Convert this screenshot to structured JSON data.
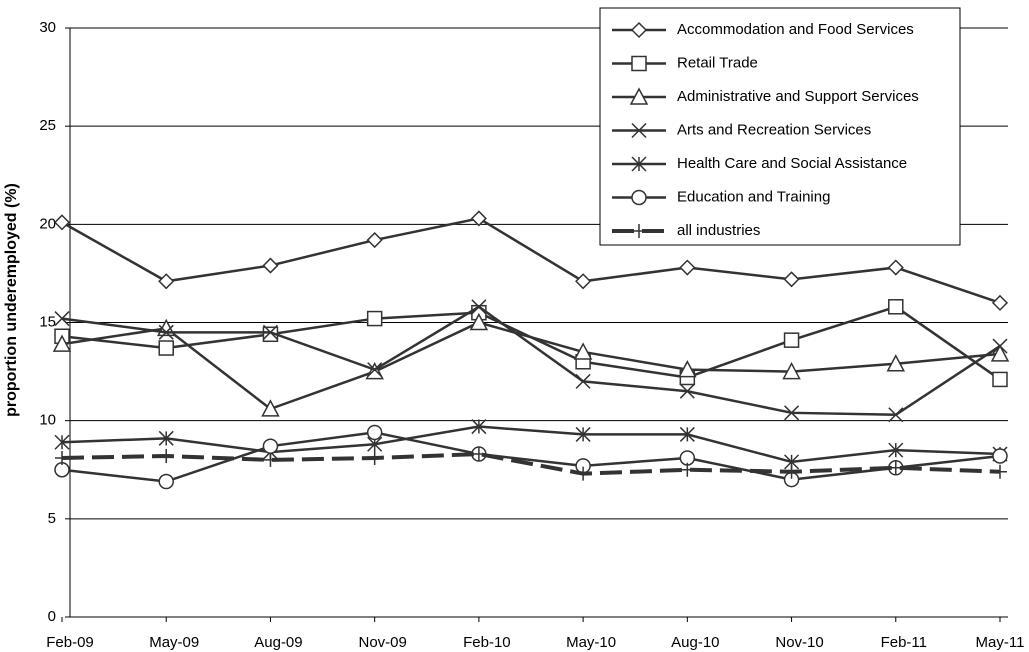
{
  "chart_data": {
    "type": "line",
    "y_label": "proportion underemployed (%)",
    "categories": [
      "Feb-09",
      "May-09",
      "Aug-09",
      "Nov-09",
      "Feb-10",
      "May-10",
      "Aug-10",
      "Nov-10",
      "Feb-11",
      "May-11"
    ],
    "ylim": [
      0,
      30
    ],
    "yticks": [
      0,
      5,
      10,
      15,
      20,
      25,
      30
    ],
    "grid": true,
    "legend": "upper right",
    "series": [
      {
        "name": "Accommodation and Food Services",
        "color": "#333333",
        "marker": "diamond",
        "values": [
          20.1,
          17.1,
          17.9,
          19.2,
          20.3,
          17.1,
          17.8,
          17.2,
          17.8,
          16.0
        ]
      },
      {
        "name": "Retail Trade",
        "color": "#333333",
        "marker": "square",
        "values": [
          14.3,
          13.7,
          14.4,
          15.2,
          15.5,
          13.0,
          12.2,
          14.1,
          15.8,
          12.1
        ]
      },
      {
        "name": "Administrative and Support Services",
        "color": "#333333",
        "marker": "triangle",
        "values": [
          13.9,
          14.7,
          10.6,
          12.5,
          15.0,
          13.5,
          12.6,
          12.5,
          12.9,
          13.4
        ]
      },
      {
        "name": "Arts and Recreation Services",
        "color": "#333333",
        "marker": "x",
        "values": [
          15.2,
          14.5,
          14.5,
          12.6,
          15.8,
          12.0,
          11.5,
          10.4,
          10.3,
          13.8
        ]
      },
      {
        "name": "Health Care and Social Assistance",
        "color": "#333333",
        "marker": "asterisk",
        "values": [
          8.9,
          9.1,
          8.4,
          8.8,
          9.7,
          9.3,
          9.3,
          7.9,
          8.5,
          8.3
        ]
      },
      {
        "name": "Education and Training",
        "color": "#333333",
        "marker": "circle",
        "values": [
          7.5,
          6.9,
          8.7,
          9.4,
          8.3,
          7.7,
          8.1,
          7.0,
          7.6,
          8.2
        ]
      },
      {
        "name": "all industries",
        "color": "#333333",
        "marker": "plus",
        "dashed": true,
        "values": [
          8.1,
          8.2,
          8.0,
          8.1,
          8.3,
          7.3,
          7.5,
          7.4,
          7.6,
          7.4
        ]
      }
    ]
  }
}
